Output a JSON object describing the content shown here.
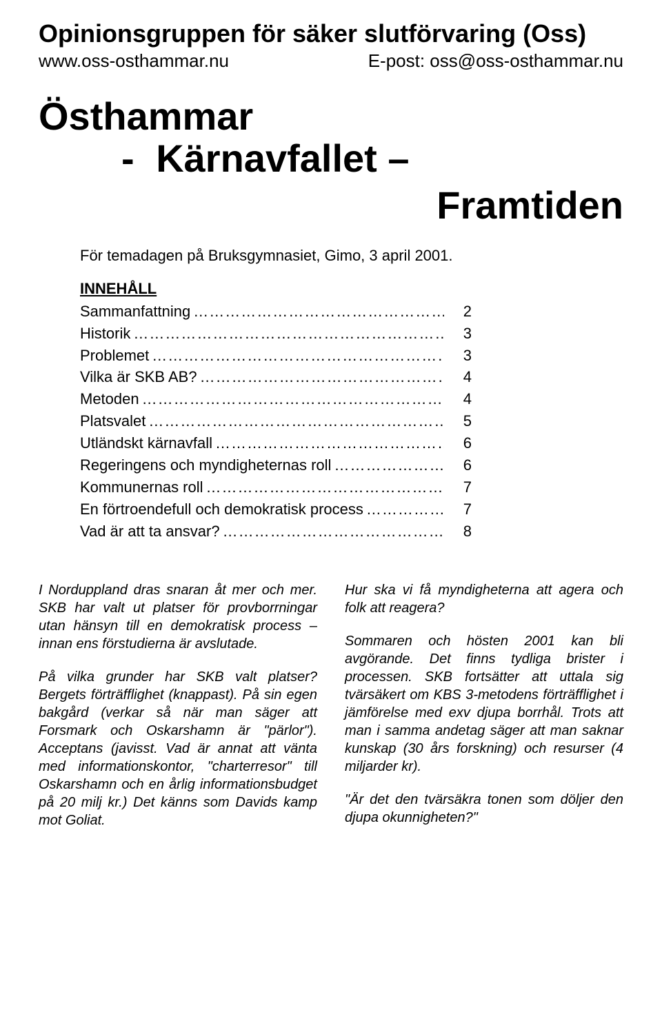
{
  "header": {
    "org_title": "Opinionsgruppen för säker slutförvaring (Oss)",
    "website": "www.oss-osthammar.nu",
    "email_label": "E-post: oss@oss-osthammar.nu"
  },
  "title": {
    "line1": "Östhammar",
    "line2_dash": "-",
    "line2_word": "Kärnavfallet –",
    "line3": "Framtiden"
  },
  "event_line": "För temadagen på Bruksgymnasiet, Gimo, 3 april 2001.",
  "toc": {
    "heading": "INNEHÅLL",
    "items": [
      {
        "label": "Sammanfattning",
        "page": "2"
      },
      {
        "label": "Historik",
        "page": "3"
      },
      {
        "label": "Problemet",
        "page": "3"
      },
      {
        "label": "Vilka är SKB AB?",
        "page": "4"
      },
      {
        "label": "Metoden",
        "page": "4"
      },
      {
        "label": "Platsvalet",
        "page": "5"
      },
      {
        "label": "Utländskt kärnavfall",
        "page": "6"
      },
      {
        "label": "Regeringens och myndigheternas roll",
        "page": "6"
      },
      {
        "label": "Kommunernas roll",
        "page": "7"
      },
      {
        "label": "En förtroendefull och demokratisk process",
        "page": "7"
      },
      {
        "label": "Vad är att ta ansvar?",
        "page": "8"
      }
    ]
  },
  "columns": {
    "left": [
      "I Norduppland dras snaran åt mer och mer. SKB har valt ut platser för prov­borrningar utan hänsyn till en demo­kratisk process – innan ens förstudi­erna är avslutade.",
      "På vilka grunder har SKB valt platser? Bergets förträfflighet (knappast). På sin egen bakgård (verkar så när man sä­ger att Forsmark och Oskarshamn är \"pärlor\"). Acceptans (javisst. Vad är annat att vänta med informationskon­tor, \"charterresor\" till Oskarshamn och en årlig informationsbudget på 20 milj kr.) Det känns som Davids kamp mot Goliat."
    ],
    "right": [
      "Hur ska vi få myndigheterna att agera och folk att reagera?",
      "Sommaren och hösten 2001 kan bli avgörande. Det finns tydliga brister i processen. SKB fortsätter att uttala sig tvärsäkert om KBS 3-metodens för­träfflighet i jämförelse med exv djupa borrhål. Trots att man i samma ande­tag säger att man saknar kunskap (30 års forskning) och resurser (4 miljarder kr).",
      "\"Är det den tvärsäkra tonen som döljer den djupa okunnigheten?\""
    ]
  }
}
